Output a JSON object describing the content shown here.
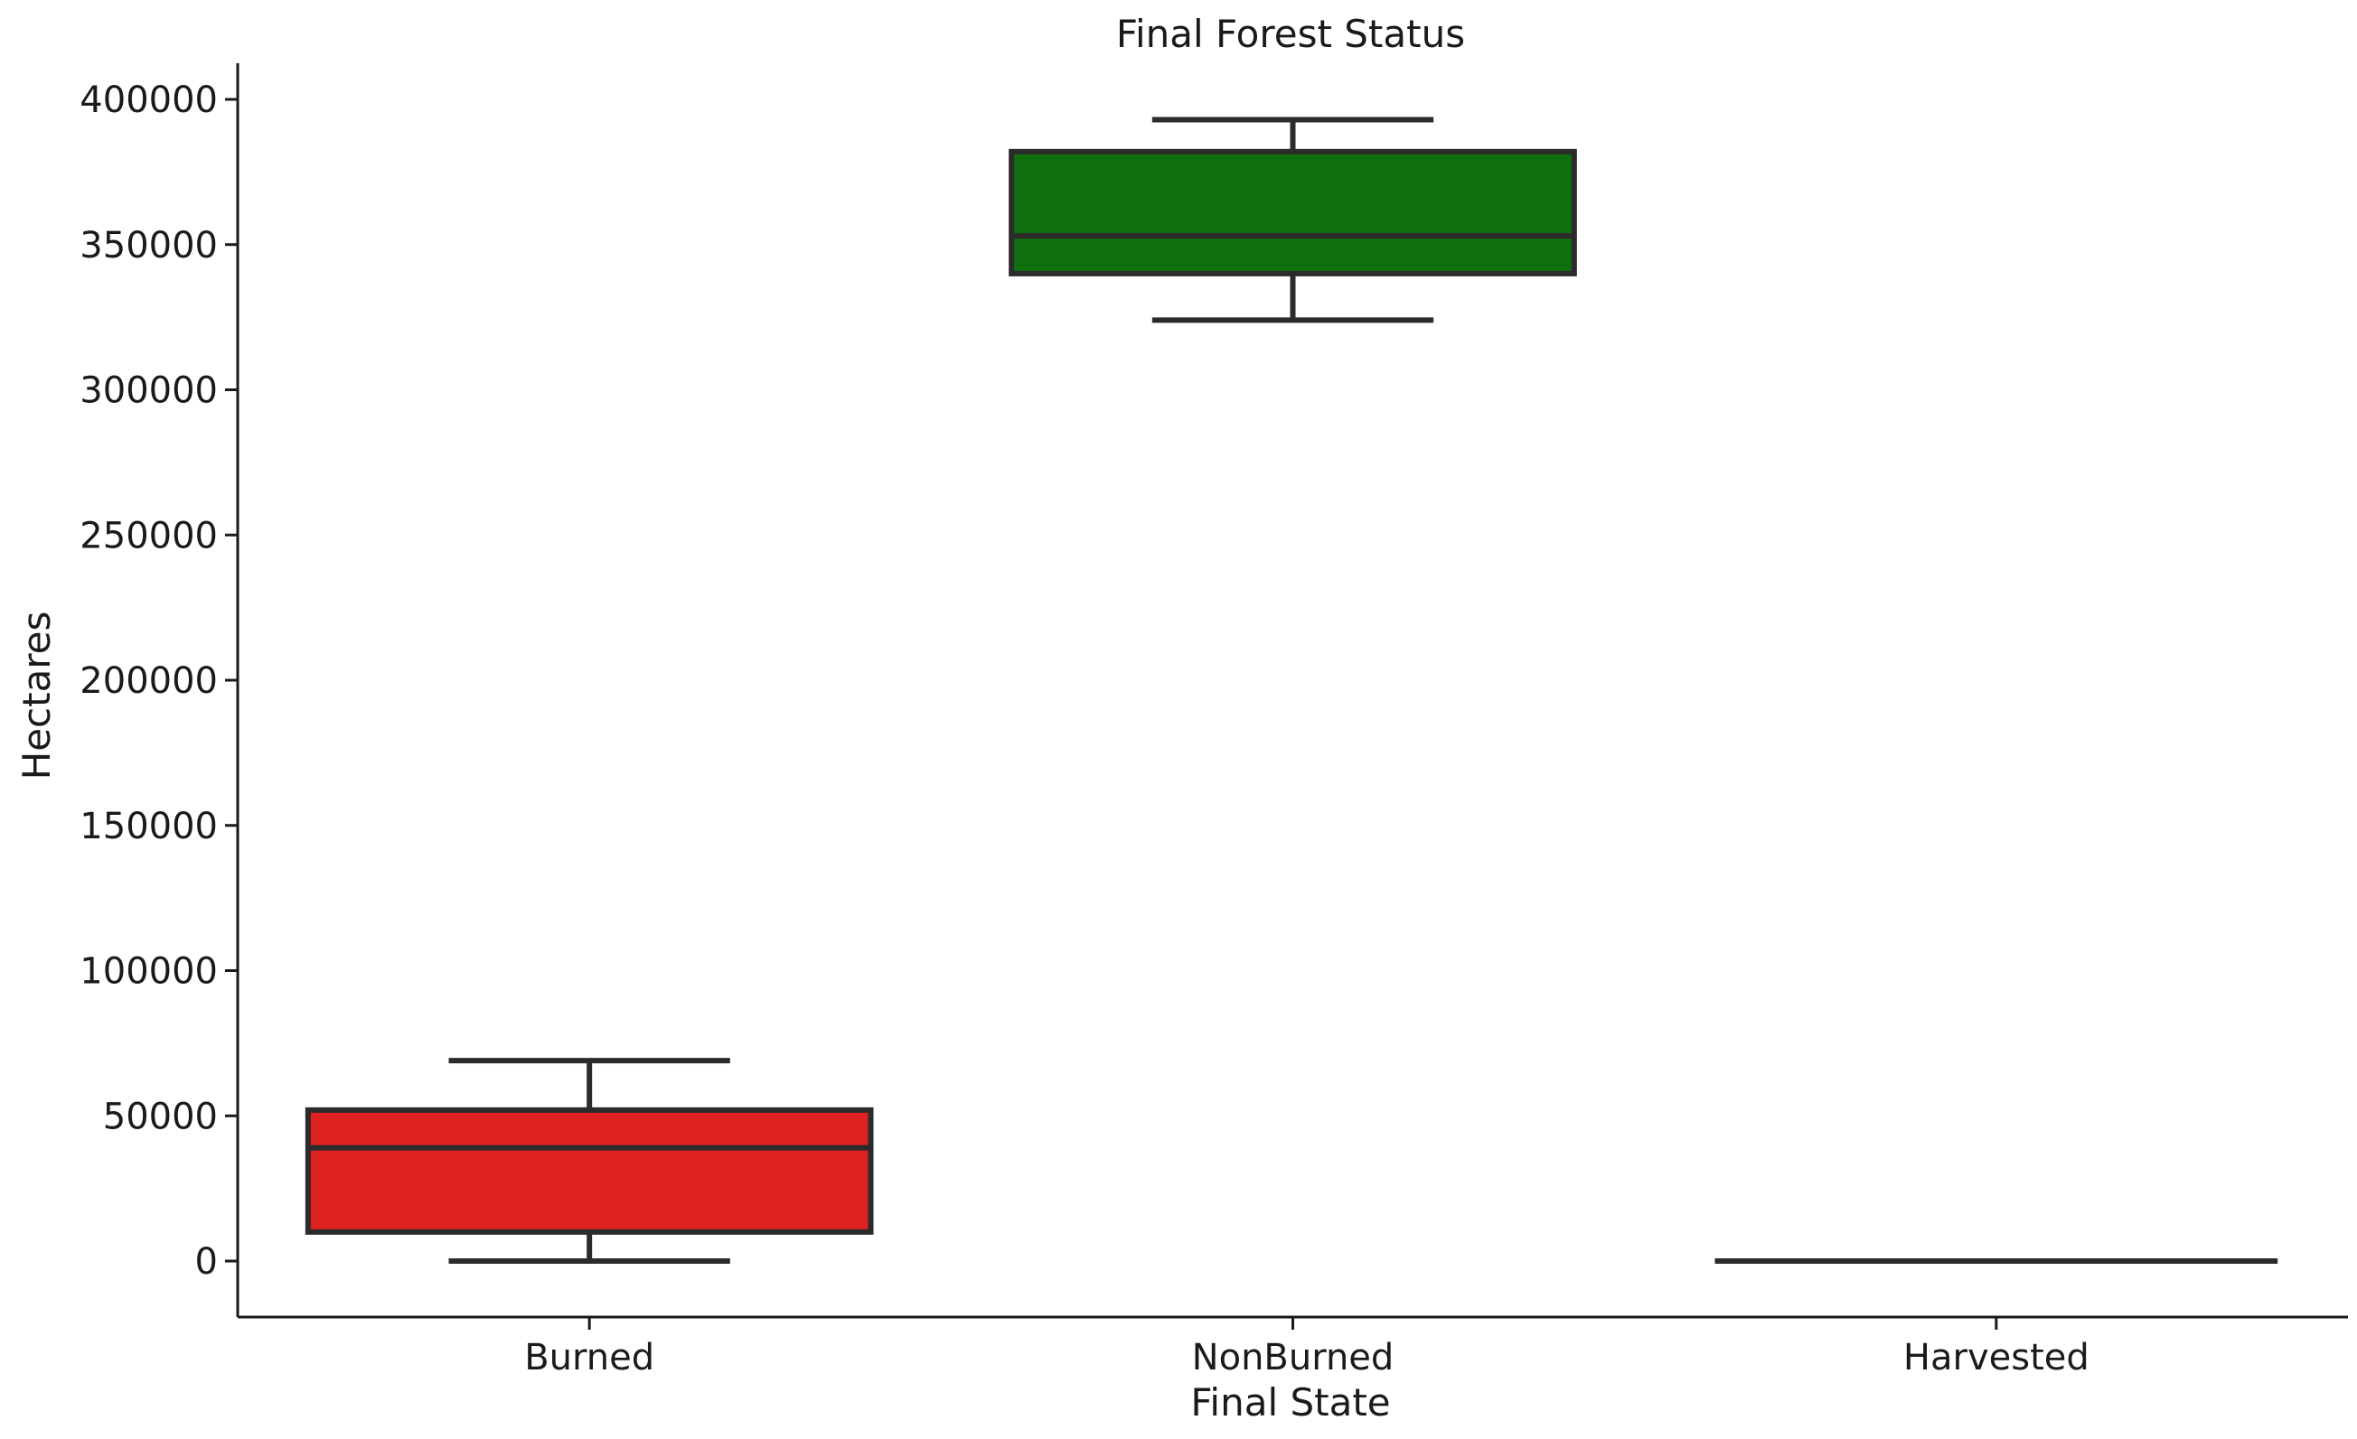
{
  "chart_data": {
    "type": "box",
    "title": "Final Forest Status",
    "xlabel": "Final State",
    "ylabel": "Hectares",
    "ylim": [
      -20000,
      412000
    ],
    "yticks": [
      0,
      50000,
      100000,
      150000,
      200000,
      250000,
      300000,
      350000,
      400000
    ],
    "grid": false,
    "categories": [
      "Burned",
      "NonBurned",
      "Harvested"
    ],
    "boxes": [
      {
        "category": "Burned",
        "min": 0,
        "q1": 10000,
        "median": 39000,
        "q3": 52000,
        "max": 69000,
        "color": "#de2020"
      },
      {
        "category": "NonBurned",
        "min": 324000,
        "q1": 340000,
        "median": 353000,
        "q3": 382000,
        "max": 393000,
        "color": "#107010"
      },
      {
        "category": "Harvested",
        "min": 0,
        "q1": 0,
        "median": 0,
        "q3": 0,
        "max": 0,
        "color": "#3060b0"
      }
    ]
  }
}
